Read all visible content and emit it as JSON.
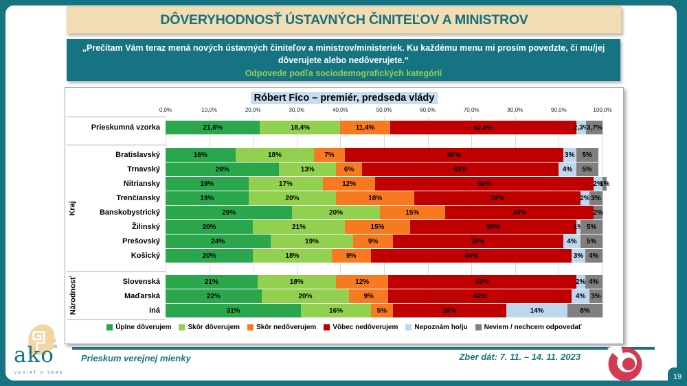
{
  "colors": {
    "teal": "#167381",
    "beige_banner": "#F2DCB4",
    "note_green": "#92D050",
    "title_highlight": "#C9DCF0",
    "crimson_logo": "#D23A52",
    "head_beige": "#F2D5A0"
  },
  "header": {
    "title": "DÔVERYHODNOSŤ ÚSTAVNÝCH ČINITEĽOV A MINISTROV"
  },
  "subheader": {
    "quote": "„Prečítam Vám teraz mená nových ústavných činiteľov a ministrov/ministeriek. Ku každému menu mi prosím povedzte, či mu/jej dôverujete alebo nedôverujete.“",
    "note": "Odpovede podľa sociodemografických kategórií"
  },
  "chart_data": {
    "type": "bar",
    "stacked": true,
    "orientation": "horizontal",
    "title": "Róbert Fico – premiér, predseda vlády",
    "xlim": [
      0,
      100
    ],
    "grid": true,
    "legend_position": "bottom",
    "x_ticks": [
      "0,0%",
      "10,0%",
      "20,0%",
      "30,0%",
      "40,0%",
      "50,0%",
      "60,0%",
      "70,0%",
      "80,0%",
      "90,0%",
      "100,0%"
    ],
    "series_names": [
      "Úplne dôverujem",
      "Skôr dôverujem",
      "Skôr nedôverujem",
      "Vôbec nedôverujem",
      "Nepoznám ho/ju",
      "Neviem / nechcem odpovedať"
    ],
    "series_colors": [
      "#2AA64C",
      "#92D050",
      "#F87A20",
      "#C00000",
      "#BDD7EE",
      "#7F7F7F"
    ],
    "groups": [
      {
        "label": "",
        "rows": [
          {
            "category": "Prieskumná vzorka",
            "values": [
              21.6,
              18.4,
              11.4,
              42.6,
              2.3,
              3.7
            ],
            "labels": [
              "21,6%",
              "18,4%",
              "11,4%",
              "42,6%",
              "2,3%",
              "3,7%"
            ]
          }
        ]
      },
      {
        "label": "Kraj",
        "rows": [
          {
            "category": "Bratislavský",
            "values": [
              16,
              18,
              7,
              50,
              3,
              5
            ],
            "labels": [
              "16%",
              "18%",
              "7%",
              "50%",
              "3%",
              "5%"
            ]
          },
          {
            "category": "Trnavský",
            "values": [
              26,
              13,
              6,
              45,
              4,
              5
            ],
            "labels": [
              "26%",
              "13%",
              "6%",
              "45%",
              "4%",
              "5%"
            ]
          },
          {
            "category": "Nitriansky",
            "values": [
              19,
              17,
              12,
              50,
              2,
              1
            ],
            "labels": [
              "19%",
              "17%",
              "12%",
              "50%",
              "2%",
              "1%"
            ]
          },
          {
            "category": "Trenčiansky",
            "values": [
              19,
              20,
              18,
              38,
              2,
              3
            ],
            "labels": [
              "19%",
              "20%",
              "18%",
              "38%",
              "2%",
              "3%"
            ]
          },
          {
            "category": "Banskobystrický",
            "values": [
              29,
              20,
              15,
              34,
              0,
              2
            ],
            "labels": [
              "29%",
              "20%",
              "15%",
              "34%",
              "",
              "2%"
            ]
          },
          {
            "category": "Žilinský",
            "values": [
              20,
              21,
              15,
              38,
              1,
              5
            ],
            "labels": [
              "20%",
              "21%",
              "15%",
              "38%",
              "1%",
              "5%"
            ]
          },
          {
            "category": "Prešovský",
            "values": [
              24,
              19,
              9,
              39,
              4,
              5
            ],
            "labels": [
              "24%",
              "19%",
              "9%",
              "39%",
              "4%",
              "5%"
            ]
          },
          {
            "category": "Košický",
            "values": [
              20,
              18,
              9,
              46,
              3,
              4
            ],
            "labels": [
              "20%",
              "18%",
              "9%",
              "46%",
              "3%",
              "4%"
            ]
          }
        ]
      },
      {
        "label": "Národnosť",
        "rows": [
          {
            "category": "Slovenská",
            "values": [
              21,
              18,
              12,
              43,
              2,
              4
            ],
            "labels": [
              "21%",
              "18%",
              "12%",
              "43%",
              "2%",
              "4%"
            ]
          },
          {
            "category": "Maďarská",
            "values": [
              22,
              20,
              9,
              42,
              4,
              3
            ],
            "labels": [
              "22%",
              "20%",
              "9%",
              "42%",
              "4%",
              "3%"
            ]
          },
          {
            "category": "Iná",
            "values": [
              31,
              16,
              5,
              26,
              14,
              8
            ],
            "labels": [
              "31%",
              "16%",
              "5%",
              "26%",
              "14%",
              "8%"
            ]
          }
        ]
      }
    ]
  },
  "footer": {
    "left": "Prieskum verejnej mienky",
    "right": "Zber dát: 7. 11. – 14. 11. 2023",
    "page": "19",
    "logo": {
      "name": "ako",
      "reg": "®",
      "tagline": "VEDIAŤ O SEBE"
    }
  }
}
